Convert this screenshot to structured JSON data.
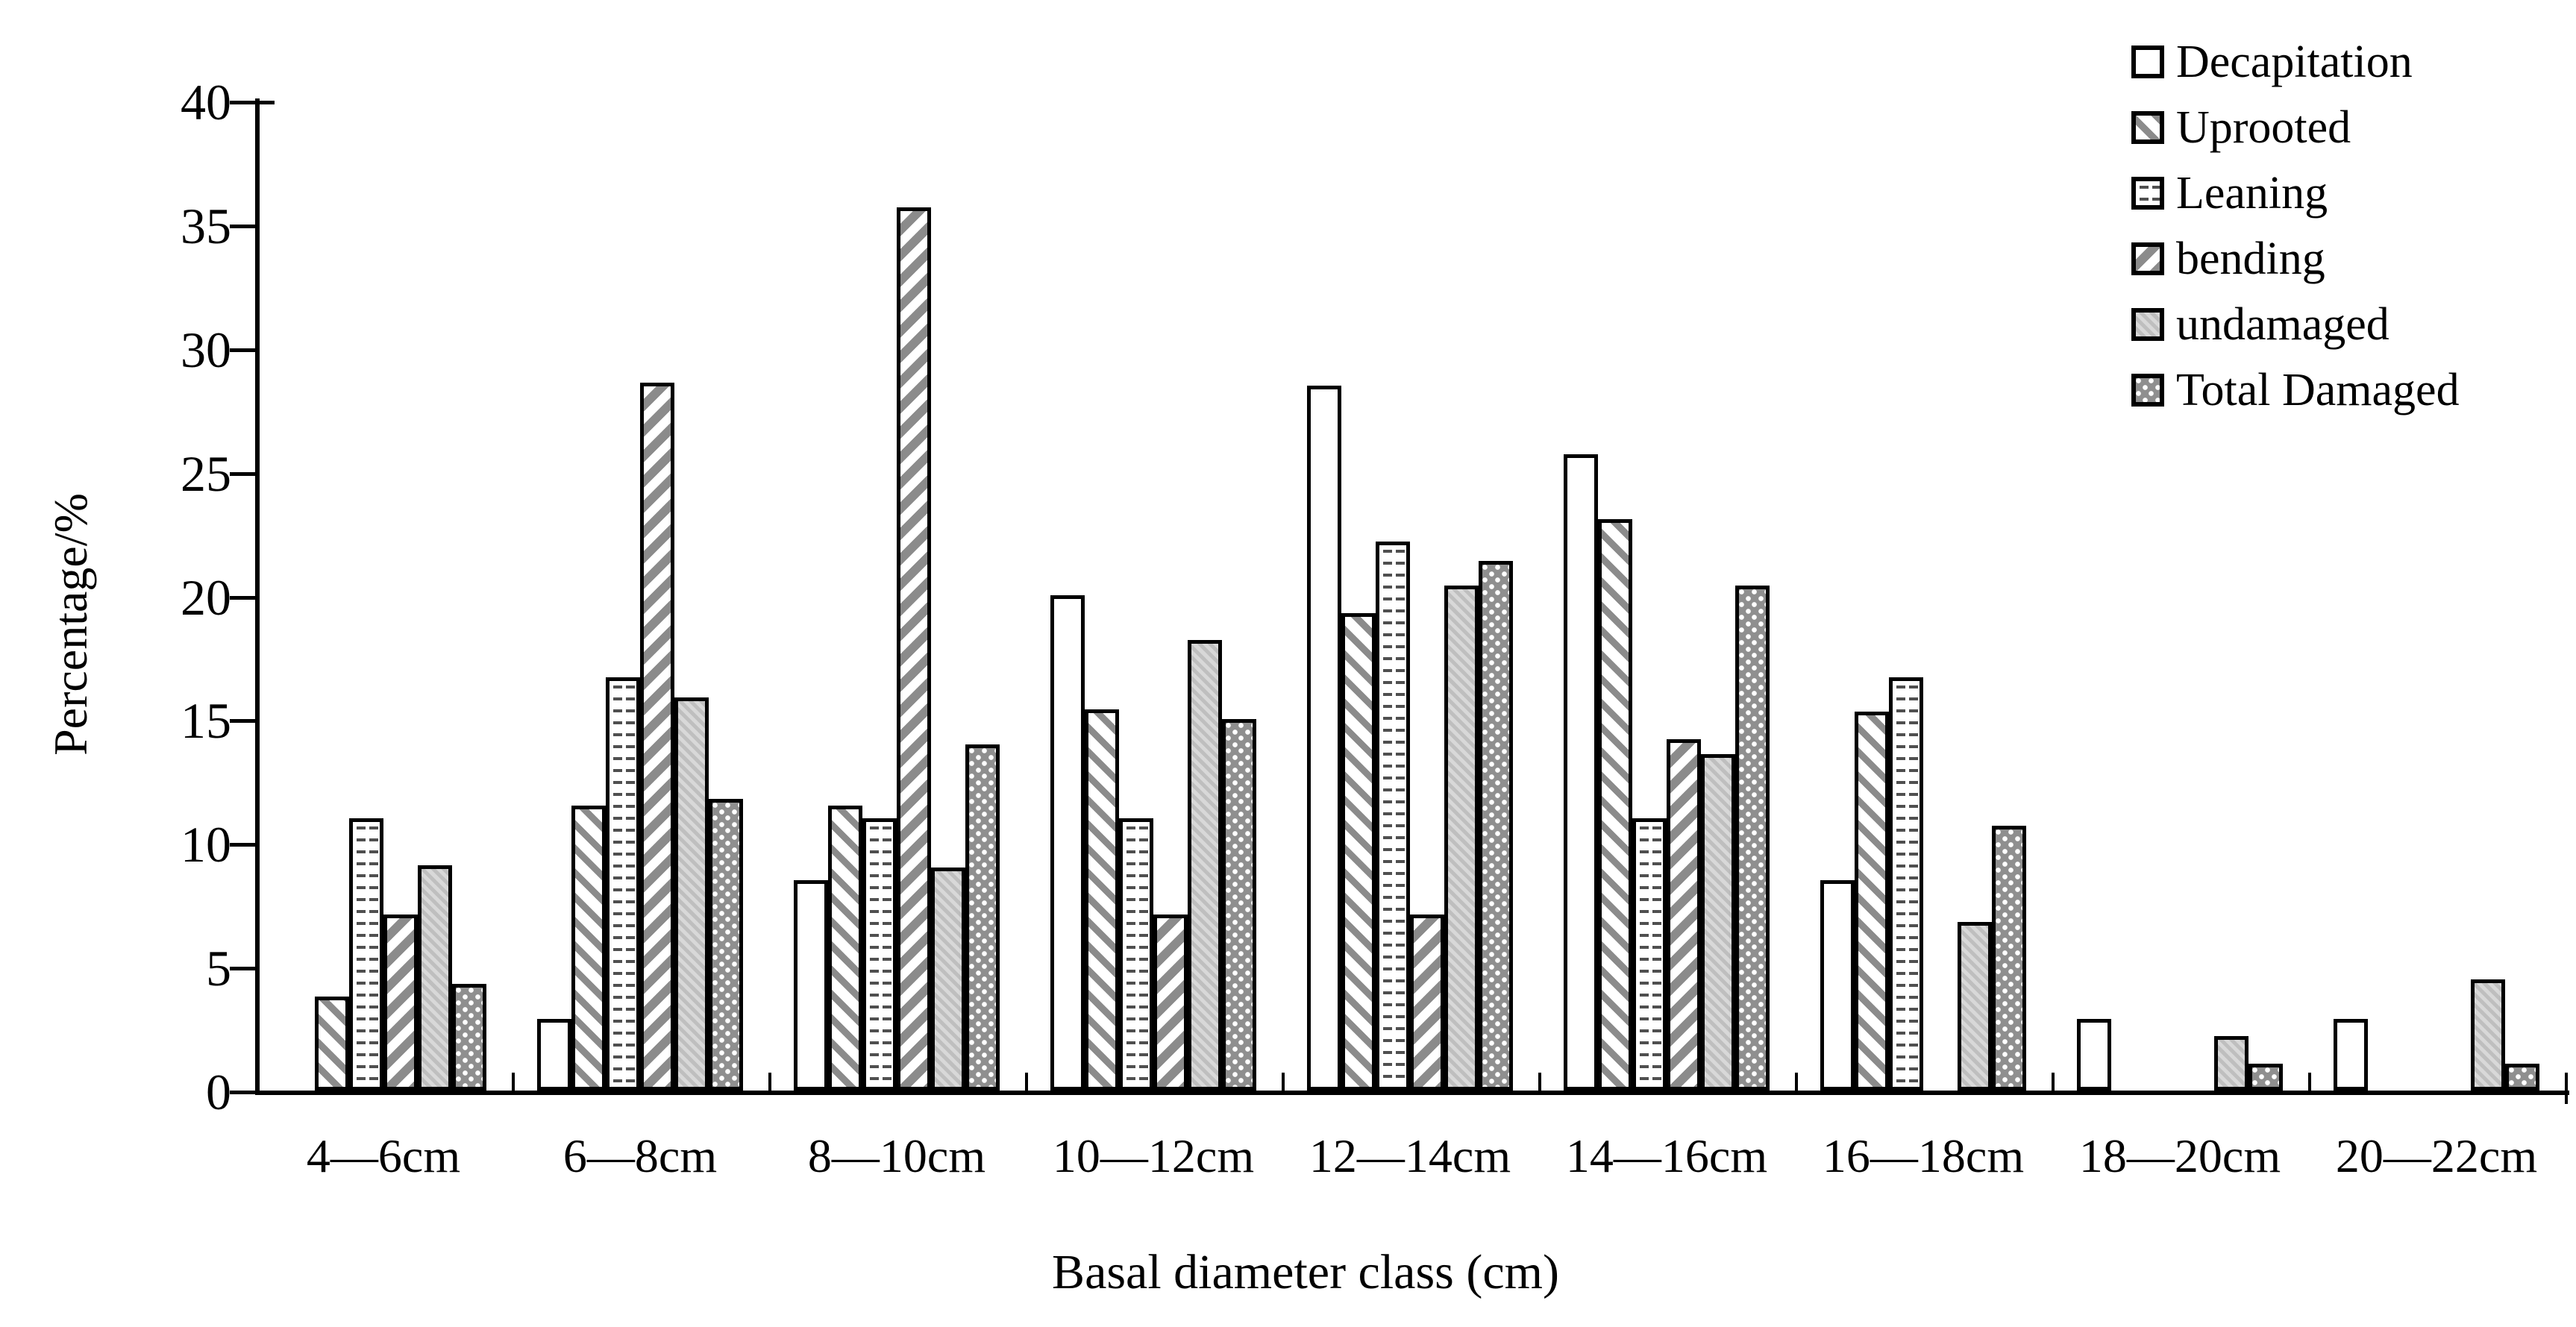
{
  "chart_data": {
    "type": "bar",
    "title": "",
    "xlabel": "Basal diameter class (cm)",
    "ylabel": "Percentage/%",
    "ylim": [
      0,
      40
    ],
    "ytick_step": 5,
    "grid": false,
    "legend_position": "top-right",
    "categories": [
      "4—6cm",
      "6—8cm",
      "8—10cm",
      "10—12cm",
      "12—14cm",
      "14—16cm",
      "16—18cm",
      "18—20cm",
      "20—22cm"
    ],
    "series": [
      {
        "name": "Decapitation",
        "pattern": "white-empty",
        "values": [
          0,
          2.9,
          8.5,
          20.0,
          28.5,
          25.7,
          8.5,
          2.9,
          2.9
        ]
      },
      {
        "name": "Uprooted",
        "pattern": "thin-diagonal-stripes",
        "values": [
          3.8,
          11.5,
          11.5,
          15.4,
          19.3,
          23.1,
          15.3,
          0,
          0
        ]
      },
      {
        "name": "Leaning",
        "pattern": "horizontal-dashes",
        "values": [
          11.0,
          16.7,
          11.0,
          11.0,
          22.2,
          11.0,
          16.7,
          0,
          0
        ]
      },
      {
        "name": "bending",
        "pattern": "wide-diagonal-stripes",
        "values": [
          7.1,
          28.6,
          35.7,
          7.1,
          7.1,
          14.2,
          0,
          0,
          0
        ]
      },
      {
        "name": "undamaged",
        "pattern": "solid-light-gray",
        "values": [
          9.1,
          15.9,
          9.0,
          18.2,
          20.4,
          13.6,
          6.8,
          2.2,
          4.5
        ]
      },
      {
        "name": "Total Damaged",
        "pattern": "gray-white-dots",
        "values": [
          4.3,
          11.8,
          14.0,
          15.0,
          21.4,
          20.4,
          10.7,
          1.1,
          1.1
        ]
      }
    ]
  },
  "colors": {
    "background": "#ffffff",
    "bar_outline": "#000000",
    "stripe_gray": "#8b8b8b",
    "dash_gray": "#4f4f4f",
    "undamaged_gray": "#c9c9c9",
    "dot_pattern_gray": "#8f8f8f"
  }
}
